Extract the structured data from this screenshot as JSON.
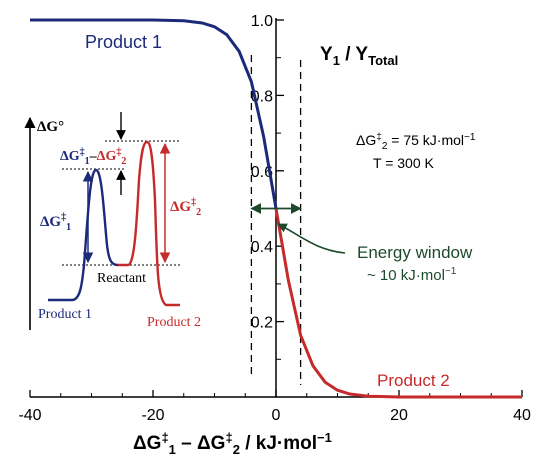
{
  "chart_data": {
    "type": "line",
    "xlabel": {
      "main": "ΔG",
      "sup1": "‡",
      "sub1": "1",
      "mid": " – ΔG",
      "sup2": "‡",
      "sub2": "2",
      "unit": " / kJ·mol",
      "exp": "−1"
    },
    "ylabel": {
      "main": "Y",
      "sub1": "1",
      "mid": " / Y",
      "sub2": "Total"
    },
    "xlim": [
      -40,
      40
    ],
    "ylim": [
      0,
      1.0
    ],
    "x_ticks": [
      "-40",
      "-20",
      "0",
      "20",
      "40"
    ],
    "y_ticks": [
      "0.2",
      "0.4",
      "0.6",
      "0.8",
      "1.0"
    ],
    "grid": false,
    "params": {
      "dg2": {
        "pre": "ΔG",
        "sup": "‡",
        "sub": "2",
        "post": " = 75 kJ·mol",
        "exp": "−1"
      },
      "temp": "T = 300 K"
    },
    "series": [
      {
        "name": "Product 1",
        "color": "#1c2a7a",
        "x": [
          -40,
          -30,
          -20,
          -15,
          -12,
          -10,
          -8,
          -6,
          -4,
          -2,
          0
        ],
        "y": [
          1.0,
          1.0,
          1.0,
          0.998,
          0.992,
          0.982,
          0.961,
          0.917,
          0.836,
          0.69,
          0.5
        ]
      },
      {
        "name": "Product 2",
        "color": "#c62a2a",
        "x": [
          0,
          2,
          4,
          6,
          8,
          10,
          12,
          15,
          20,
          30,
          40
        ],
        "y": [
          0.5,
          0.31,
          0.164,
          0.083,
          0.039,
          0.018,
          0.008,
          0.002,
          0.0,
          0.0,
          0.0
        ]
      }
    ],
    "energy_window": {
      "x_range": [
        -4,
        4
      ],
      "label1": "Energy window",
      "label2": {
        "pre": "~ 10 kJ·mol",
        "exp": "−1"
      },
      "color": "#1e4a2c"
    },
    "curve_labels": {
      "product1": "Product 1",
      "product2": "Product 2"
    },
    "inset": {
      "axis_label": {
        "pre": "ΔG",
        "post": "°"
      },
      "reactant": "Reactant",
      "product1": "Product 1",
      "product2": "Product 2",
      "dg1": {
        "pre": "ΔG",
        "sup": "‡",
        "sub": "1"
      },
      "dg2": {
        "pre": "ΔG",
        "sup": "‡",
        "sub": "2"
      },
      "ddg": {
        "a": "ΔG",
        "asup": "‡",
        "asub": "1",
        "dash": "–",
        "b": "ΔG",
        "bsup": "‡",
        "bsub": "2"
      }
    }
  }
}
